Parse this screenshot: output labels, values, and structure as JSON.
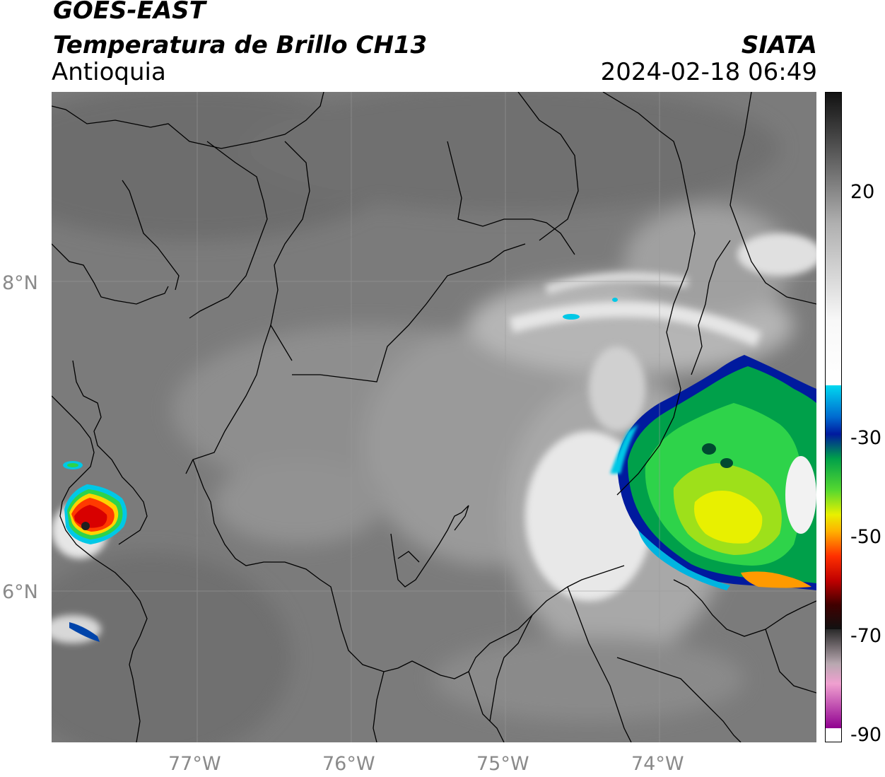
{
  "header": {
    "satellite": "GOES-EAST",
    "product": "Temperatura de Brillo CH13",
    "region": "Antioquia",
    "agency": "SIATA",
    "datetime": "2024-02-18 06:49"
  },
  "map": {
    "lat_ticks": [
      "8°N",
      "6°N"
    ],
    "lon_ticks": [
      "77°W",
      "76°W",
      "75°W",
      "74°W"
    ]
  },
  "colorbar": {
    "tick_labels": [
      "20",
      "-30",
      "-50",
      "-70",
      "-90"
    ]
  }
}
